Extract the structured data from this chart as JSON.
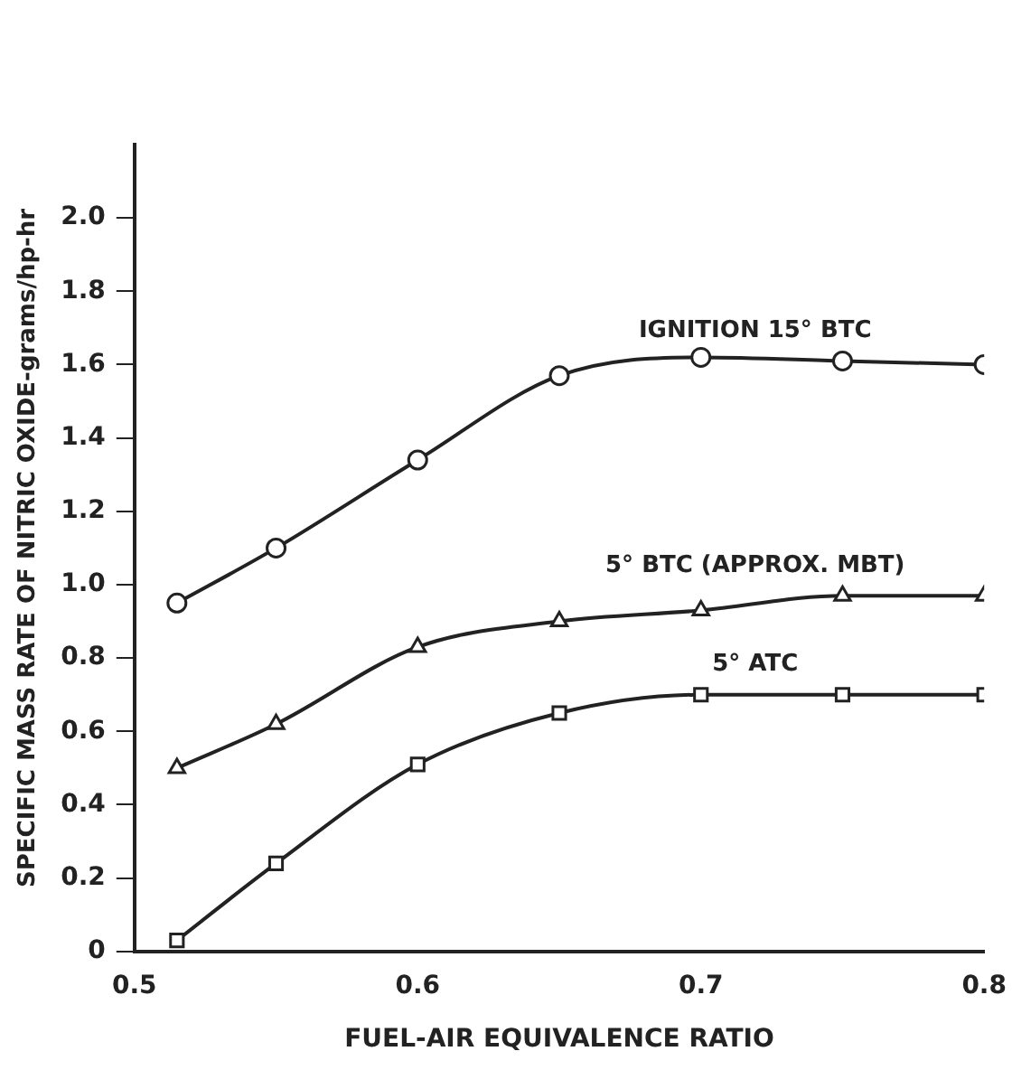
{
  "chart_data": {
    "type": "line",
    "xlabel": "FUEL-AIR EQUIVALENCE RATIO",
    "ylabel": "SPECIFIC MASS RATE OF NITRIC OXIDE-grams/hp-hr",
    "x": [
      0.515,
      0.55,
      0.6,
      0.65,
      0.7,
      0.75,
      0.8
    ],
    "series": [
      {
        "name": "IGNITION 15° BTC",
        "color": "#222222",
        "marker": "circle",
        "values": [
          0.95,
          1.1,
          1.34,
          1.57,
          1.62,
          1.61,
          1.6
        ]
      },
      {
        "name": "5° BTC (APPROX. MBT)",
        "color": "#222222",
        "marker": "triangle",
        "values": [
          0.5,
          0.62,
          0.83,
          0.9,
          0.93,
          0.97,
          0.97
        ]
      },
      {
        "name": "5° ATC",
        "color": "#222222",
        "marker": "square",
        "values": [
          0.03,
          0.24,
          0.51,
          0.65,
          0.7,
          0.7,
          0.7
        ]
      }
    ],
    "xlim": [
      0.5,
      0.8
    ],
    "xticks": [
      0.5,
      0.6,
      0.7,
      0.8
    ],
    "ylim": [
      0,
      2.2
    ],
    "yticks": [
      0,
      0.2,
      0.4,
      0.6,
      0.8,
      {
        "value": 1,
        "label": "1.0"
      },
      1.2,
      1.4,
      1.6,
      1.8,
      {
        "value": 2,
        "label": "2.0"
      }
    ],
    "grid": false,
    "legend": false,
    "line_style": "solid"
  }
}
